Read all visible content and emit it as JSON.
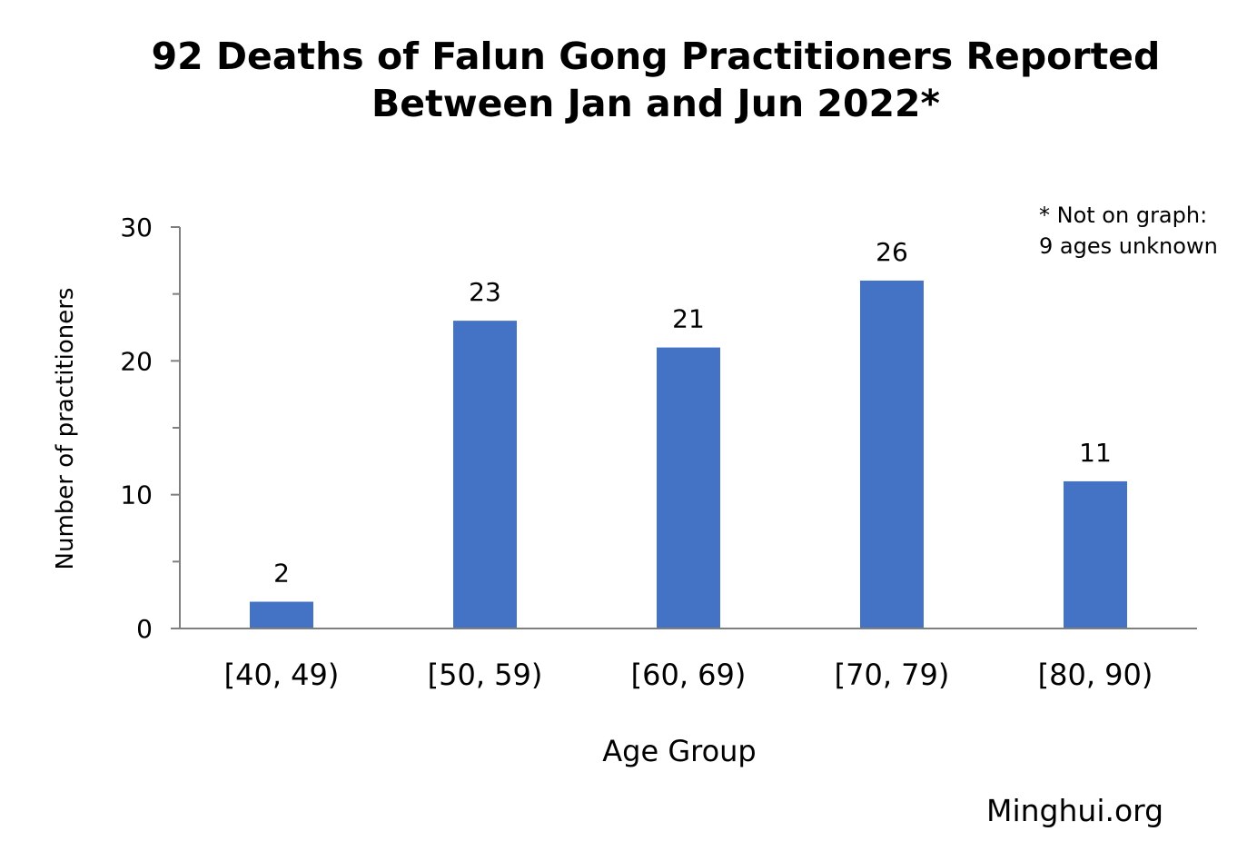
{
  "chart_data": {
    "type": "bar",
    "title": "92 Deaths of Falun Gong Practitioners Reported",
    "subtitle": "Between Jan and Jun 2022*",
    "categories": [
      "[40, 49)",
      "[50, 59)",
      "[60, 69)",
      "[70, 79)",
      "[80, 90)"
    ],
    "values": [
      2,
      23,
      21,
      26,
      11
    ],
    "xlabel": "Age Group",
    "ylabel": "Number of practitioners",
    "ylim": [
      0,
      30
    ],
    "yticks": [
      0,
      10,
      20,
      30
    ],
    "bar_color": "#4472C4",
    "grid": false,
    "legend": "none",
    "annotations": [
      "* Not on graph:",
      "9 ages unknown"
    ]
  },
  "source": "Minghui.org"
}
